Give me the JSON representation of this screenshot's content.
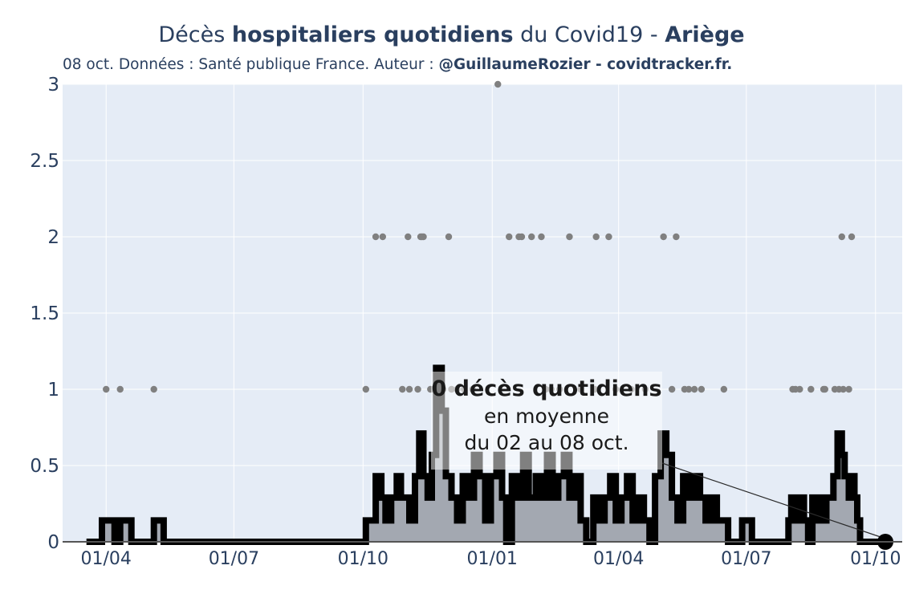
{
  "title": {
    "prefix": "Décès ",
    "bold1": "hospitaliers quotidiens",
    "middle": " du Covid19 - ",
    "bold2": "Ariège"
  },
  "subtitle": {
    "text": "08 oct. Données : Santé publique France. Auteur : ",
    "bold": "@GuillaumeRozier - covidtracker.fr."
  },
  "annotation": {
    "line1": "0 décès quotidiens",
    "line2": "en moyenne",
    "line3": "du 02 au 08 oct."
  },
  "colors": {
    "plot_bg": "#e5ecf6",
    "grid": "#ffffff",
    "dots": "#808080",
    "area_fill": "#a3a8b1",
    "line": "#000000",
    "axis_text": "#2a3f5f"
  },
  "chart_data": {
    "type": "line",
    "x_range": [
      "2020-03-01",
      "2021-10-20"
    ],
    "ylim": [
      0,
      3
    ],
    "yticks": [
      0,
      0.5,
      1,
      1.5,
      2,
      2.5,
      3
    ],
    "ytick_labels": [
      "0",
      "0.5",
      "1",
      "1.5",
      "2",
      "2.5",
      "3"
    ],
    "xticks": [
      "2020-04-01",
      "2020-07-01",
      "2020-10-01",
      "2021-01-01",
      "2021-04-01",
      "2021-07-01",
      "2021-10-01"
    ],
    "xtick_labels": [
      "01/04",
      "01/07",
      "01/10",
      "01/01",
      "01/04",
      "01/07",
      "01/10"
    ],
    "grid": true,
    "daily_points": [
      {
        "date": "2020-04-01",
        "value": 1
      },
      {
        "date": "2020-04-11",
        "value": 1
      },
      {
        "date": "2020-05-05",
        "value": 1
      },
      {
        "date": "2020-10-03",
        "value": 1
      },
      {
        "date": "2020-10-10",
        "value": 2
      },
      {
        "date": "2020-10-15",
        "value": 2
      },
      {
        "date": "2020-10-29",
        "value": 1
      },
      {
        "date": "2020-11-02",
        "value": 2
      },
      {
        "date": "2020-11-03",
        "value": 1
      },
      {
        "date": "2020-11-09",
        "value": 1
      },
      {
        "date": "2020-11-11",
        "value": 2
      },
      {
        "date": "2020-11-12",
        "value": 2
      },
      {
        "date": "2020-11-13",
        "value": 2
      },
      {
        "date": "2020-11-18",
        "value": 1
      },
      {
        "date": "2020-11-20",
        "value": 1
      },
      {
        "date": "2020-11-27",
        "value": 1
      },
      {
        "date": "2020-12-01",
        "value": 2
      },
      {
        "date": "2020-12-03",
        "value": 1
      },
      {
        "date": "2020-12-07",
        "value": 1
      },
      {
        "date": "2020-12-12",
        "value": 1
      },
      {
        "date": "2020-12-18",
        "value": 1
      },
      {
        "date": "2021-01-05",
        "value": 3
      },
      {
        "date": "2021-01-13",
        "value": 2
      },
      {
        "date": "2021-01-20",
        "value": 2
      },
      {
        "date": "2021-01-22",
        "value": 2
      },
      {
        "date": "2021-01-29",
        "value": 2
      },
      {
        "date": "2021-02-05",
        "value": 2
      },
      {
        "date": "2021-02-08",
        "value": 1
      },
      {
        "date": "2021-02-12",
        "value": 1
      },
      {
        "date": "2021-02-18",
        "value": 1
      },
      {
        "date": "2021-02-25",
        "value": 2
      },
      {
        "date": "2021-03-05",
        "value": 1
      },
      {
        "date": "2021-03-15",
        "value": 1
      },
      {
        "date": "2021-03-16",
        "value": 2
      },
      {
        "date": "2021-03-25",
        "value": 2
      },
      {
        "date": "2021-03-30",
        "value": 1
      },
      {
        "date": "2021-04-10",
        "value": 1
      },
      {
        "date": "2021-04-20",
        "value": 1
      },
      {
        "date": "2021-05-03",
        "value": 2
      },
      {
        "date": "2021-05-09",
        "value": 1
      },
      {
        "date": "2021-05-12",
        "value": 2
      },
      {
        "date": "2021-05-18",
        "value": 1
      },
      {
        "date": "2021-05-21",
        "value": 1
      },
      {
        "date": "2021-05-25",
        "value": 1
      },
      {
        "date": "2021-05-30",
        "value": 1
      },
      {
        "date": "2021-06-15",
        "value": 1
      },
      {
        "date": "2021-08-03",
        "value": 1
      },
      {
        "date": "2021-08-05",
        "value": 1
      },
      {
        "date": "2021-08-08",
        "value": 1
      },
      {
        "date": "2021-08-16",
        "value": 1
      },
      {
        "date": "2021-08-25",
        "value": 1
      },
      {
        "date": "2021-08-26",
        "value": 1
      },
      {
        "date": "2021-09-02",
        "value": 1
      },
      {
        "date": "2021-09-05",
        "value": 1
      },
      {
        "date": "2021-09-07",
        "value": 2
      },
      {
        "date": "2021-09-08",
        "value": 1
      },
      {
        "date": "2021-09-12",
        "value": 1
      },
      {
        "date": "2021-09-14",
        "value": 2
      }
    ],
    "rolling_avg": [
      {
        "date": "2020-03-18",
        "value": 0
      },
      {
        "date": "2020-03-28",
        "value": 0
      },
      {
        "date": "2020-03-29",
        "value": 0.14
      },
      {
        "date": "2020-04-06",
        "value": 0.14
      },
      {
        "date": "2020-04-07",
        "value": 0
      },
      {
        "date": "2020-04-10",
        "value": 0
      },
      {
        "date": "2020-04-11",
        "value": 0.14
      },
      {
        "date": "2020-04-18",
        "value": 0.14
      },
      {
        "date": "2020-04-19",
        "value": 0
      },
      {
        "date": "2020-05-04",
        "value": 0
      },
      {
        "date": "2020-05-05",
        "value": 0.14
      },
      {
        "date": "2020-05-11",
        "value": 0.14
      },
      {
        "date": "2020-05-12",
        "value": 0
      },
      {
        "date": "2020-10-02",
        "value": 0
      },
      {
        "date": "2020-10-03",
        "value": 0.14
      },
      {
        "date": "2020-10-08",
        "value": 0.14
      },
      {
        "date": "2020-10-10",
        "value": 0.43
      },
      {
        "date": "2020-10-14",
        "value": 0.29
      },
      {
        "date": "2020-10-17",
        "value": 0.14
      },
      {
        "date": "2020-10-21",
        "value": 0.29
      },
      {
        "date": "2020-10-25",
        "value": 0.43
      },
      {
        "date": "2020-10-28",
        "value": 0.29
      },
      {
        "date": "2020-11-03",
        "value": 0.14
      },
      {
        "date": "2020-11-07",
        "value": 0.43
      },
      {
        "date": "2020-11-10",
        "value": 0.71
      },
      {
        "date": "2020-11-13",
        "value": 0.43
      },
      {
        "date": "2020-11-16",
        "value": 0.29
      },
      {
        "date": "2020-11-19",
        "value": 0.57
      },
      {
        "date": "2020-11-22",
        "value": 1.14
      },
      {
        "date": "2020-11-26",
        "value": 0.86
      },
      {
        "date": "2020-11-29",
        "value": 0.43
      },
      {
        "date": "2020-12-03",
        "value": 0.29
      },
      {
        "date": "2020-12-07",
        "value": 0.14
      },
      {
        "date": "2020-12-11",
        "value": 0.43
      },
      {
        "date": "2020-12-15",
        "value": 0.29
      },
      {
        "date": "2020-12-19",
        "value": 0.57
      },
      {
        "date": "2020-12-23",
        "value": 0.43
      },
      {
        "date": "2020-12-27",
        "value": 0.14
      },
      {
        "date": "2020-12-31",
        "value": 0.43
      },
      {
        "date": "2021-01-04",
        "value": 0.57
      },
      {
        "date": "2021-01-08",
        "value": 0.29
      },
      {
        "date": "2021-01-11",
        "value": 0
      },
      {
        "date": "2021-01-15",
        "value": 0.43
      },
      {
        "date": "2021-01-19",
        "value": 0.29
      },
      {
        "date": "2021-01-23",
        "value": 0.57
      },
      {
        "date": "2021-01-27",
        "value": 0.29
      },
      {
        "date": "2021-02-01",
        "value": 0.43
      },
      {
        "date": "2021-02-05",
        "value": 0.29
      },
      {
        "date": "2021-02-09",
        "value": 0.57
      },
      {
        "date": "2021-02-13",
        "value": 0.29
      },
      {
        "date": "2021-02-17",
        "value": 0.43
      },
      {
        "date": "2021-02-21",
        "value": 0.57
      },
      {
        "date": "2021-02-25",
        "value": 0.29
      },
      {
        "date": "2021-03-01",
        "value": 0.43
      },
      {
        "date": "2021-03-05",
        "value": 0.14
      },
      {
        "date": "2021-03-09",
        "value": 0
      },
      {
        "date": "2021-03-14",
        "value": 0.29
      },
      {
        "date": "2021-03-18",
        "value": 0.14
      },
      {
        "date": "2021-03-22",
        "value": 0.29
      },
      {
        "date": "2021-03-26",
        "value": 0.43
      },
      {
        "date": "2021-03-30",
        "value": 0.14
      },
      {
        "date": "2021-04-03",
        "value": 0.29
      },
      {
        "date": "2021-04-07",
        "value": 0.43
      },
      {
        "date": "2021-04-11",
        "value": 0.14
      },
      {
        "date": "2021-04-15",
        "value": 0.29
      },
      {
        "date": "2021-04-19",
        "value": 0.14
      },
      {
        "date": "2021-04-23",
        "value": 0
      },
      {
        "date": "2021-04-27",
        "value": 0.43
      },
      {
        "date": "2021-05-01",
        "value": 0.71
      },
      {
        "date": "2021-05-05",
        "value": 0.57
      },
      {
        "date": "2021-05-09",
        "value": 0.29
      },
      {
        "date": "2021-05-13",
        "value": 0.14
      },
      {
        "date": "2021-05-17",
        "value": 0.43
      },
      {
        "date": "2021-05-21",
        "value": 0.29
      },
      {
        "date": "2021-05-25",
        "value": 0.43
      },
      {
        "date": "2021-05-29",
        "value": 0.29
      },
      {
        "date": "2021-06-02",
        "value": 0.14
      },
      {
        "date": "2021-06-06",
        "value": 0.29
      },
      {
        "date": "2021-06-10",
        "value": 0.14
      },
      {
        "date": "2021-06-14",
        "value": 0.14
      },
      {
        "date": "2021-06-18",
        "value": 0
      },
      {
        "date": "2021-06-27",
        "value": 0
      },
      {
        "date": "2021-06-28",
        "value": 0.14
      },
      {
        "date": "2021-07-04",
        "value": 0.14
      },
      {
        "date": "2021-07-05",
        "value": 0
      },
      {
        "date": "2021-07-30",
        "value": 0
      },
      {
        "date": "2021-07-31",
        "value": 0.14
      },
      {
        "date": "2021-08-02",
        "value": 0.29
      },
      {
        "date": "2021-08-06",
        "value": 0.14
      },
      {
        "date": "2021-08-08",
        "value": 0.29
      },
      {
        "date": "2021-08-11",
        "value": 0.14
      },
      {
        "date": "2021-08-14",
        "value": 0
      },
      {
        "date": "2021-08-17",
        "value": 0.29
      },
      {
        "date": "2021-08-20",
        "value": 0.14
      },
      {
        "date": "2021-08-22",
        "value": 0.29
      },
      {
        "date": "2021-08-25",
        "value": 0.14
      },
      {
        "date": "2021-08-27",
        "value": 0.29
      },
      {
        "date": "2021-08-30",
        "value": 0.29
      },
      {
        "date": "2021-09-01",
        "value": 0.43
      },
      {
        "date": "2021-09-04",
        "value": 0.71
      },
      {
        "date": "2021-09-07",
        "value": 0.57
      },
      {
        "date": "2021-09-09",
        "value": 0.43
      },
      {
        "date": "2021-09-12",
        "value": 0.29
      },
      {
        "date": "2021-09-14",
        "value": 0.43
      },
      {
        "date": "2021-09-16",
        "value": 0.29
      },
      {
        "date": "2021-09-18",
        "value": 0.14
      },
      {
        "date": "2021-09-20",
        "value": 0
      },
      {
        "date": "2021-10-08",
        "value": 0
      }
    ],
    "last_point": {
      "date": "2021-10-08",
      "value": 0
    }
  }
}
